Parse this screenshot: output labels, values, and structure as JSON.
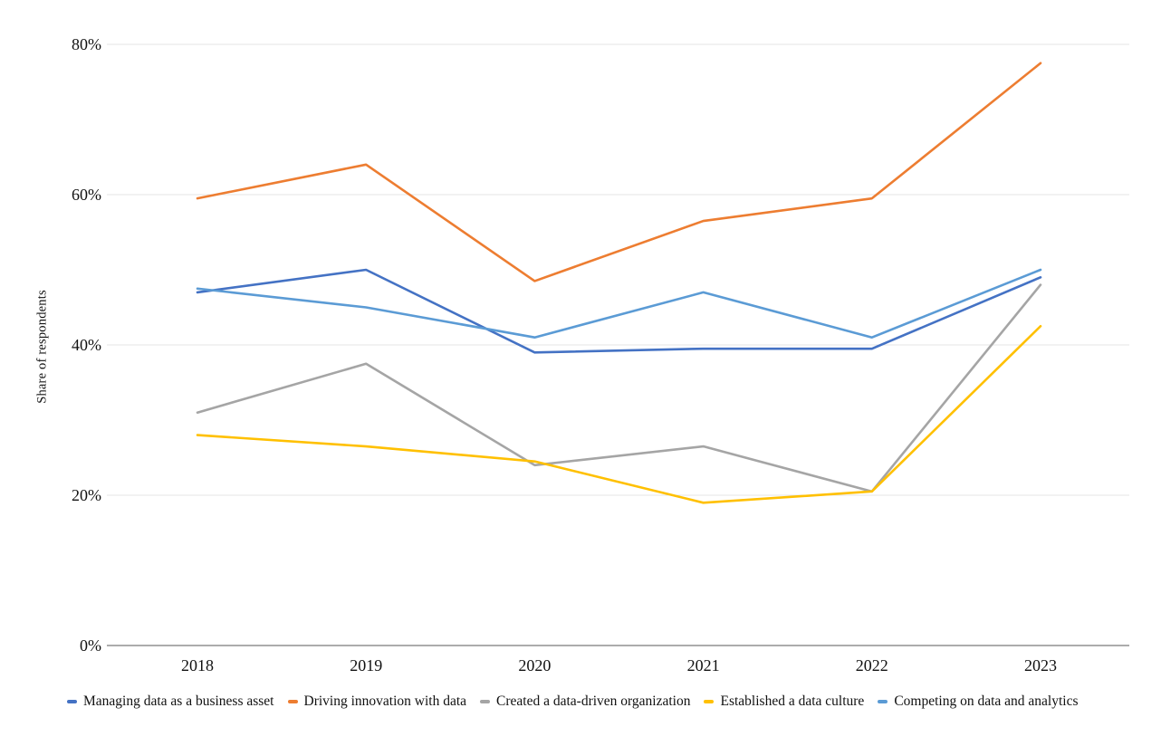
{
  "chart_data": {
    "type": "line",
    "ylabel": "Share of respondents",
    "categories": [
      "2018",
      "2019",
      "2020",
      "2021",
      "2022",
      "2023"
    ],
    "series": [
      {
        "id": "managing-data-as-a-business-asset",
        "name": "Managing data as a business asset",
        "color": "#4472C4",
        "values": [
          47,
          50,
          39,
          39.5,
          39.5,
          49
        ]
      },
      {
        "id": "driving-innovation-with-data",
        "name": "Driving innovation with data",
        "color": "#ED7D31",
        "values": [
          59.5,
          64,
          48.5,
          56.5,
          59.5,
          77.5
        ]
      },
      {
        "id": "created-a-data-driven-organization",
        "name": "Created a data-driven organization",
        "color": "#A5A5A5",
        "values": [
          31,
          37.5,
          24,
          26.5,
          20.5,
          48
        ]
      },
      {
        "id": "established-a-data-culture",
        "name": "Established a data culture",
        "color": "#FFC000",
        "values": [
          28,
          26.5,
          24.5,
          19,
          20.5,
          42.5
        ]
      },
      {
        "id": "competing-on-data-and-analytics",
        "name": "Competing on data and analytics",
        "color": "#5B9BD5",
        "values": [
          47.5,
          45,
          41,
          47,
          41,
          50
        ]
      }
    ],
    "ylim": [
      0,
      80
    ],
    "yticks": [
      {
        "value": 0,
        "label": "0%"
      },
      {
        "value": 20,
        "label": "20%"
      },
      {
        "value": 40,
        "label": "40%"
      },
      {
        "value": 60,
        "label": "60%"
      },
      {
        "value": 80,
        "label": "80%"
      }
    ],
    "grid": true,
    "legend_position": "bottom",
    "colors": {
      "grid_color": "#e5e5e5",
      "axis_line_color": "#595959",
      "text_color": "#111111"
    }
  }
}
